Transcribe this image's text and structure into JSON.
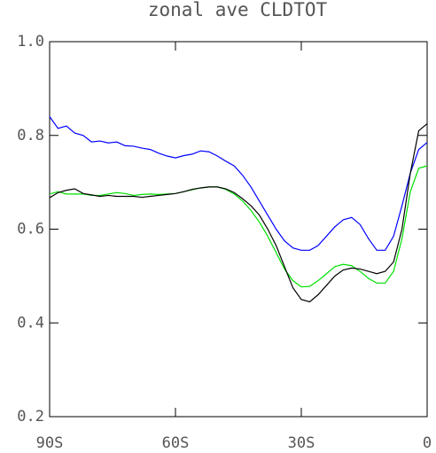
{
  "chart_data": {
    "type": "line",
    "title": "zonal ave CLDTOT",
    "x": [
      -90,
      -88,
      -86,
      -84,
      -82,
      -80,
      -78,
      -76,
      -74,
      -72,
      -70,
      -68,
      -66,
      -64,
      -62,
      -60,
      -58,
      -56,
      -54,
      -52,
      -50,
      -48,
      -46,
      -44,
      -42,
      -40,
      -38,
      -36,
      -34,
      -32,
      -30,
      -28,
      -26,
      -24,
      -22,
      -20,
      -18,
      -16,
      -14,
      -12,
      -10,
      -8,
      -6,
      -4,
      -2,
      0
    ],
    "series": [
      {
        "color": "#0000ff",
        "values": [
          0.84,
          0.815,
          0.82,
          0.805,
          0.8,
          0.786,
          0.788,
          0.784,
          0.786,
          0.778,
          0.777,
          0.773,
          0.77,
          0.762,
          0.756,
          0.752,
          0.757,
          0.76,
          0.767,
          0.765,
          0.756,
          0.745,
          0.735,
          0.715,
          0.69,
          0.66,
          0.63,
          0.6,
          0.575,
          0.56,
          0.555,
          0.555,
          0.565,
          0.585,
          0.605,
          0.62,
          0.625,
          0.61,
          0.58,
          0.555,
          0.555,
          0.585,
          0.65,
          0.72,
          0.77,
          0.785
        ]
      },
      {
        "color": "#00e000",
        "values": [
          0.675,
          0.68,
          0.675,
          0.675,
          0.675,
          0.672,
          0.672,
          0.675,
          0.678,
          0.676,
          0.672,
          0.674,
          0.675,
          0.674,
          0.675,
          0.676,
          0.68,
          0.684,
          0.688,
          0.69,
          0.69,
          0.685,
          0.675,
          0.66,
          0.64,
          0.615,
          0.585,
          0.55,
          0.515,
          0.49,
          0.477,
          0.478,
          0.49,
          0.505,
          0.52,
          0.525,
          0.522,
          0.51,
          0.495,
          0.485,
          0.485,
          0.51,
          0.58,
          0.68,
          0.73,
          0.735
        ]
      },
      {
        "color": "#000000",
        "values": [
          0.667,
          0.678,
          0.683,
          0.686,
          0.676,
          0.673,
          0.67,
          0.672,
          0.67,
          0.67,
          0.67,
          0.668,
          0.67,
          0.672,
          0.674,
          0.676,
          0.68,
          0.685,
          0.688,
          0.69,
          0.69,
          0.686,
          0.678,
          0.665,
          0.65,
          0.63,
          0.6,
          0.565,
          0.52,
          0.475,
          0.45,
          0.445,
          0.46,
          0.48,
          0.5,
          0.513,
          0.517,
          0.515,
          0.51,
          0.505,
          0.51,
          0.53,
          0.6,
          0.72,
          0.81,
          0.825
        ]
      }
    ],
    "xlim": [
      -90,
      0
    ],
    "xticks": [
      {
        "value": -90,
        "label": "90S"
      },
      {
        "value": -60,
        "label": "60S"
      },
      {
        "value": -30,
        "label": "30S"
      },
      {
        "value": 0,
        "label": "0"
      }
    ],
    "ylim": [
      0.2,
      1.0
    ],
    "yticks": [
      0.2,
      0.4,
      0.6,
      0.8,
      {
        "value": 1,
        "label": "1.0"
      }
    ],
    "grid": false
  }
}
